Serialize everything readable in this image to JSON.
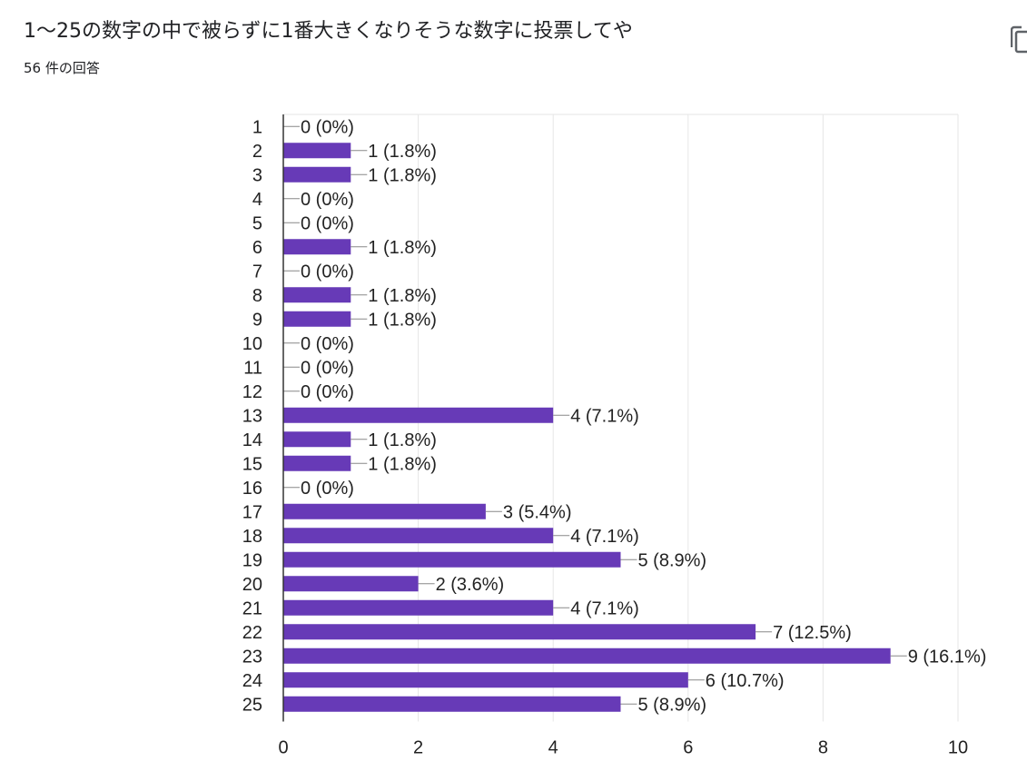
{
  "question": {
    "title": "1〜25の数字の中で被らずに1番大きくなりそうな数字に投票してや",
    "response_count": "56 件の回答"
  },
  "toolbar": {
    "copy_icon": "copy-icon"
  },
  "colors": {
    "bar": "#673ab7",
    "grid": "#e6e6e6",
    "axis": "#333333",
    "text": "#222222"
  },
  "chart_data": {
    "type": "bar",
    "orientation": "horizontal",
    "categories": [
      "1",
      "2",
      "3",
      "4",
      "5",
      "6",
      "7",
      "8",
      "9",
      "10",
      "11",
      "12",
      "13",
      "14",
      "15",
      "16",
      "17",
      "18",
      "19",
      "20",
      "21",
      "22",
      "23",
      "24",
      "25"
    ],
    "values": [
      0,
      1,
      1,
      0,
      0,
      1,
      0,
      1,
      1,
      0,
      0,
      0,
      4,
      1,
      1,
      0,
      3,
      4,
      5,
      2,
      4,
      7,
      9,
      6,
      5
    ],
    "data_labels": [
      "0 (0%)",
      "1 (1.8%)",
      "1 (1.8%)",
      "0 (0%)",
      "0 (0%)",
      "1 (1.8%)",
      "0 (0%)",
      "1 (1.8%)",
      "1 (1.8%)",
      "0 (0%)",
      "0 (0%)",
      "0 (0%)",
      "4 (7.1%)",
      "1 (1.8%)",
      "1 (1.8%)",
      "0 (0%)",
      "3 (5.4%)",
      "4 (7.1%)",
      "5 (8.9%)",
      "2 (3.6%)",
      "4 (7.1%)",
      "7 (12.5%)",
      "9 (16.1%)",
      "6 (10.7%)",
      "5 (8.9%)"
    ],
    "xlim": [
      0,
      10
    ],
    "xticks": [
      0,
      2,
      4,
      6,
      8,
      10
    ],
    "grid": true,
    "legend": "none",
    "title": "",
    "xlabel": "",
    "ylabel": ""
  }
}
